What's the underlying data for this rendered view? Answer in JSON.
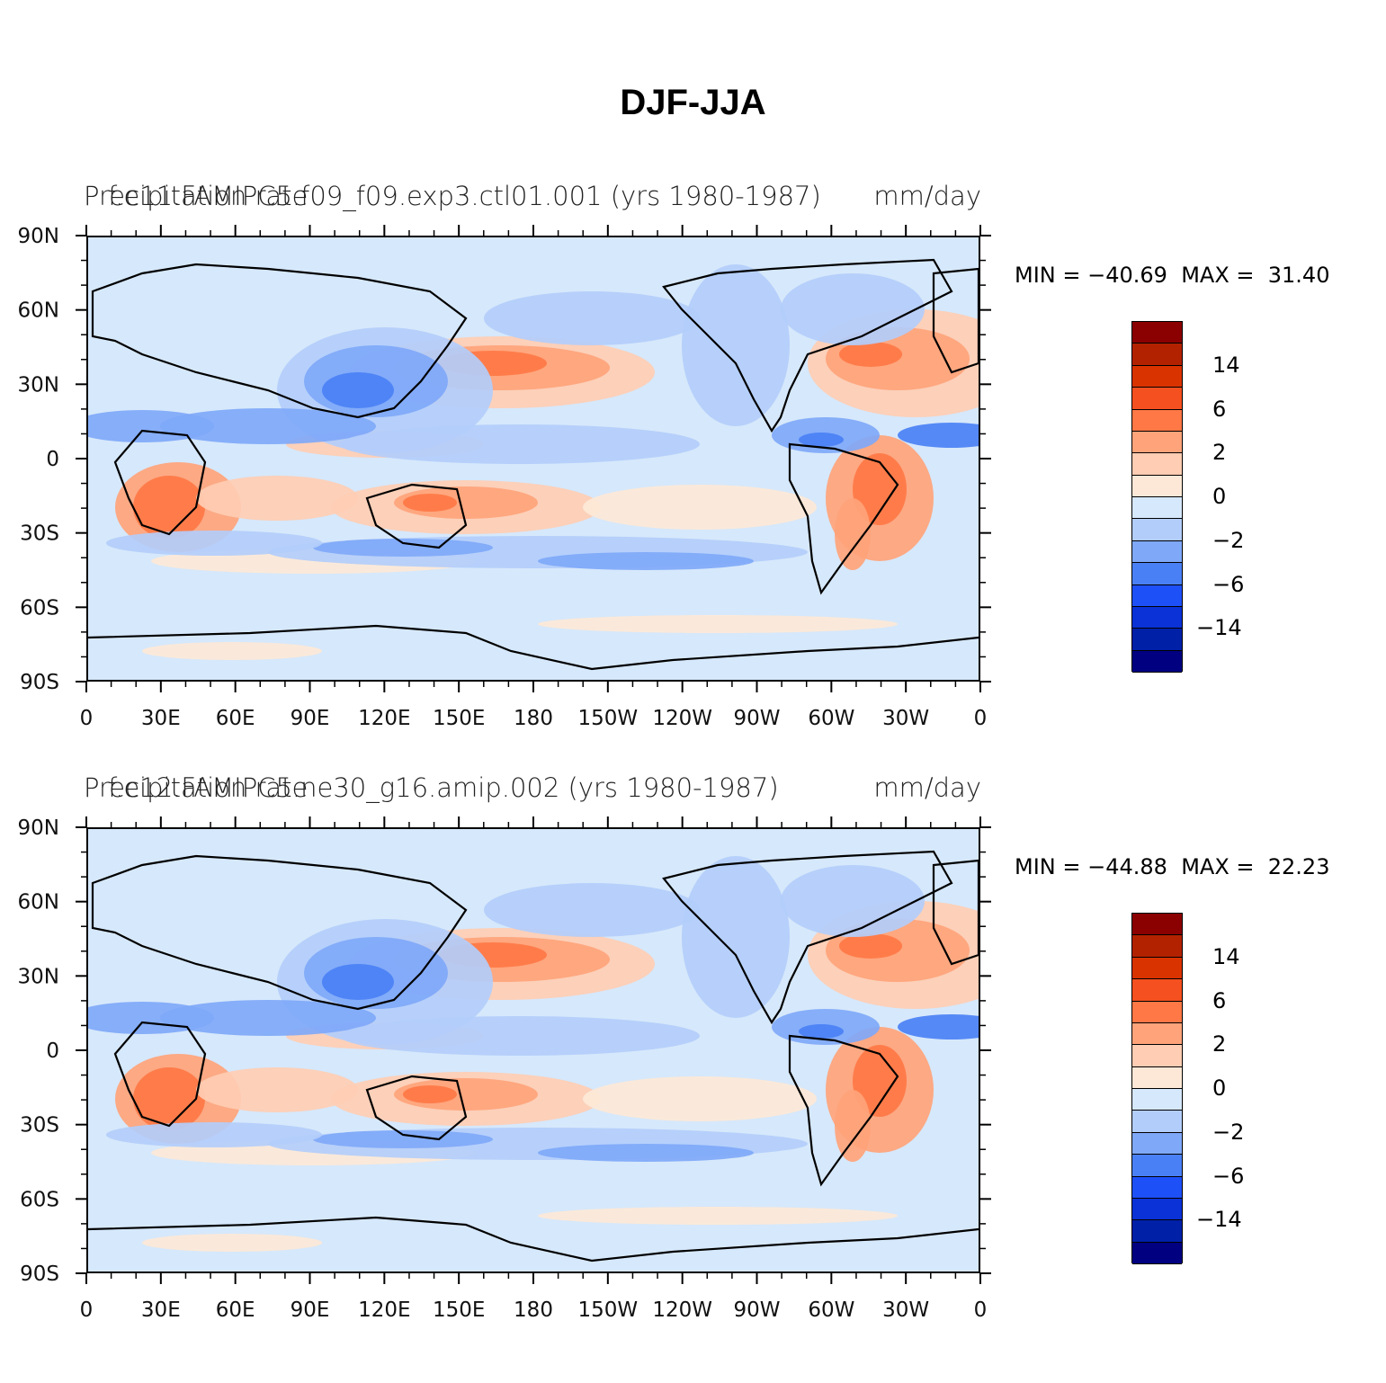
{
  "figure": {
    "title": "DJF-JJA"
  },
  "panels": [
    {
      "case_title": "f.e11.FAMIPC5.f09_f09.exp3.ctl01.001 (yrs 1980-1987)",
      "left_title": "Precipitation rate",
      "right_title": "mm/day",
      "min_label": "MIN = −40.69",
      "max_label": "MAX =  31.40"
    },
    {
      "case_title": "f.e12.FAMIPC5.ne30_g16.amip.002 (yrs 1980-1987)",
      "left_title": "Precipitation rate",
      "right_title": "mm/day",
      "min_label": "MIN = −44.88",
      "max_label": "MAX =  22.23"
    }
  ],
  "axes": {
    "lat_ticks": [
      "90N",
      "60N",
      "30N",
      "0",
      "30S",
      "60S",
      "90S"
    ],
    "lon_ticks": [
      "0",
      "30E",
      "60E",
      "90E",
      "120E",
      "150E",
      "180",
      "150W",
      "120W",
      "90W",
      "60W",
      "30W",
      "0"
    ]
  },
  "colorbar": {
    "colors": [
      "#8b0000",
      "#b22200",
      "#d93300",
      "#f5501f",
      "#ff7845",
      "#ffa37a",
      "#ffcdb3",
      "#fde8d7",
      "#d6e8fb",
      "#b3cdfb",
      "#7fa8f9",
      "#4a80f5",
      "#1e50f8",
      "#0a32d6",
      "#0020a8",
      "#000080"
    ],
    "labels": [
      "14",
      "6",
      "2",
      "0",
      "−2",
      "−6",
      "−14"
    ],
    "ocean_color": "#d6e8fb",
    "coast_color": "#000000"
  },
  "chart_data": {
    "type": "heatmap",
    "title": "DJF-JJA",
    "variable": "Precipitation rate",
    "units": "mm/day",
    "x_ticks": [
      "0",
      "30E",
      "60E",
      "90E",
      "120E",
      "150E",
      "180",
      "150W",
      "120W",
      "90W",
      "60W",
      "30W",
      "0"
    ],
    "y_ticks": [
      "90N",
      "60N",
      "30N",
      "0",
      "30S",
      "60S",
      "90S"
    ],
    "contour_levels": [
      -14,
      -6,
      -2,
      0,
      2,
      6,
      14
    ],
    "panels": [
      {
        "case": "f.e11.FAMIPC5.f09_f09.exp3.ctl01.001 (yrs 1980-1987)",
        "min": -40.69,
        "max": 31.4
      },
      {
        "case": "f.e12.FAMIPC5.ne30_g16.amip.002 (yrs 1980-1987)",
        "min": -44.88,
        "max": 22.23
      }
    ]
  }
}
